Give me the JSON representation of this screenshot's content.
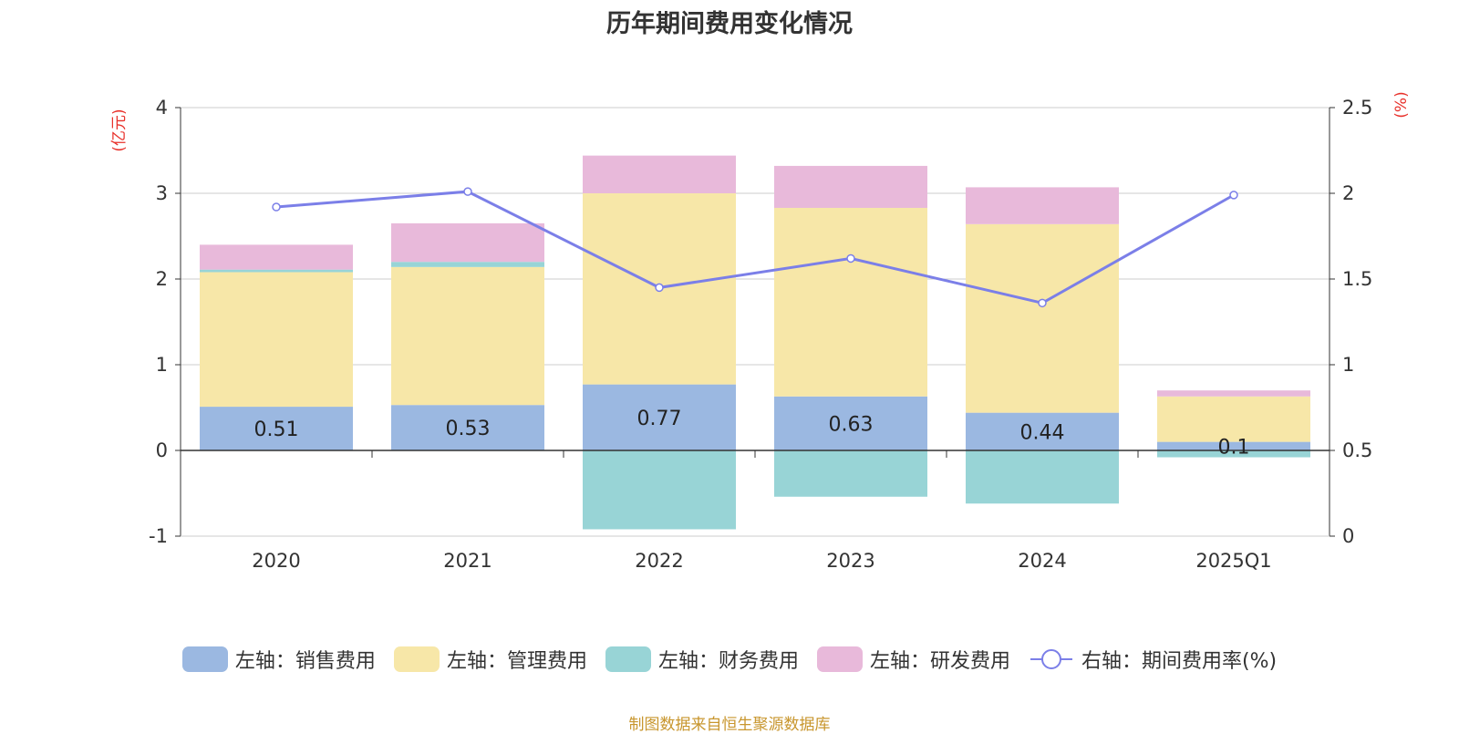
{
  "chart_data": {
    "type": "bar",
    "title": "历年期间费用变化情况",
    "categories": [
      "2020",
      "2021",
      "2022",
      "2023",
      "2024",
      "2025Q1"
    ],
    "series": [
      {
        "name": "左轴：销售费用",
        "axis": "left",
        "type": "bar",
        "color": "#9bb8e1",
        "values": [
          0.51,
          0.53,
          0.77,
          0.63,
          0.44,
          0.1
        ]
      },
      {
        "name": "左轴：管理费用",
        "axis": "left",
        "type": "bar",
        "color": "#f7e7a8",
        "values": [
          1.57,
          1.61,
          2.23,
          2.2,
          2.2,
          0.53
        ]
      },
      {
        "name": "左轴：财务费用",
        "axis": "left",
        "type": "bar",
        "color": "#98d4d6",
        "values": [
          0.03,
          0.06,
          -0.92,
          -0.54,
          -0.62,
          -0.08
        ]
      },
      {
        "name": "左轴：研发费用",
        "axis": "left",
        "type": "bar",
        "color": "#e8b9da",
        "values": [
          0.29,
          0.45,
          0.44,
          0.49,
          0.43,
          0.07
        ]
      },
      {
        "name": "右轴：期间费用率(%)",
        "axis": "right",
        "type": "line",
        "color": "#7b7fe8",
        "values": [
          1.92,
          2.01,
          1.45,
          1.62,
          1.36,
          1.99
        ]
      }
    ],
    "data_labels": [
      "0.51",
      "0.53",
      "0.77",
      "0.63",
      "0.44",
      "0.1"
    ],
    "y_left": {
      "label": "(亿元)",
      "ylim": [
        -1,
        4
      ],
      "ticks": [
        "4",
        "3",
        "2",
        "1",
        "0",
        "-1"
      ]
    },
    "y_right": {
      "label": "(%)",
      "ylim": [
        0,
        2.5
      ],
      "ticks": [
        "2.5",
        "2",
        "1.5",
        "1",
        "0.5",
        "0"
      ]
    },
    "grid": true,
    "legend_position": "bottom"
  },
  "source_note": "制图数据来自恒生聚源数据库"
}
